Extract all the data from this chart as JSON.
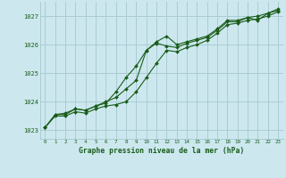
{
  "title": "Graphe pression niveau de la mer (hPa)",
  "bg_color": "#cce8ee",
  "grid_color": "#aaccd4",
  "line_color": "#1a5c1a",
  "marker_color": "#1a5c1a",
  "xlim": [
    -0.5,
    23.5
  ],
  "ylim": [
    1022.7,
    1027.5
  ],
  "yticks": [
    1023,
    1024,
    1025,
    1026,
    1027
  ],
  "xticks": [
    0,
    1,
    2,
    3,
    4,
    5,
    6,
    7,
    8,
    9,
    10,
    11,
    12,
    13,
    14,
    15,
    16,
    17,
    18,
    19,
    20,
    21,
    22,
    23
  ],
  "series1": [
    1023.1,
    1023.55,
    1023.6,
    1023.75,
    1023.7,
    1023.85,
    1024.0,
    1024.15,
    1024.45,
    1024.75,
    1025.8,
    1026.1,
    1026.3,
    1026.0,
    1026.1,
    1026.2,
    1026.3,
    1026.55,
    1026.85,
    1026.85,
    1026.95,
    1026.85,
    1027.1,
    1027.25
  ],
  "series2": [
    1023.1,
    1023.55,
    1023.55,
    1023.75,
    1023.7,
    1023.85,
    1023.95,
    1024.35,
    1024.85,
    1025.25,
    1025.8,
    1026.05,
    1025.95,
    1025.9,
    1026.05,
    1026.15,
    1026.25,
    1026.5,
    1026.8,
    1026.8,
    1026.95,
    1027.0,
    1027.1,
    1027.2
  ],
  "series3": [
    1023.1,
    1023.5,
    1023.5,
    1023.65,
    1023.6,
    1023.75,
    1023.85,
    1023.9,
    1024.0,
    1024.35,
    1024.85,
    1025.35,
    1025.8,
    1025.75,
    1025.9,
    1026.0,
    1026.15,
    1026.4,
    1026.7,
    1026.75,
    1026.85,
    1026.9,
    1027.0,
    1027.15
  ]
}
